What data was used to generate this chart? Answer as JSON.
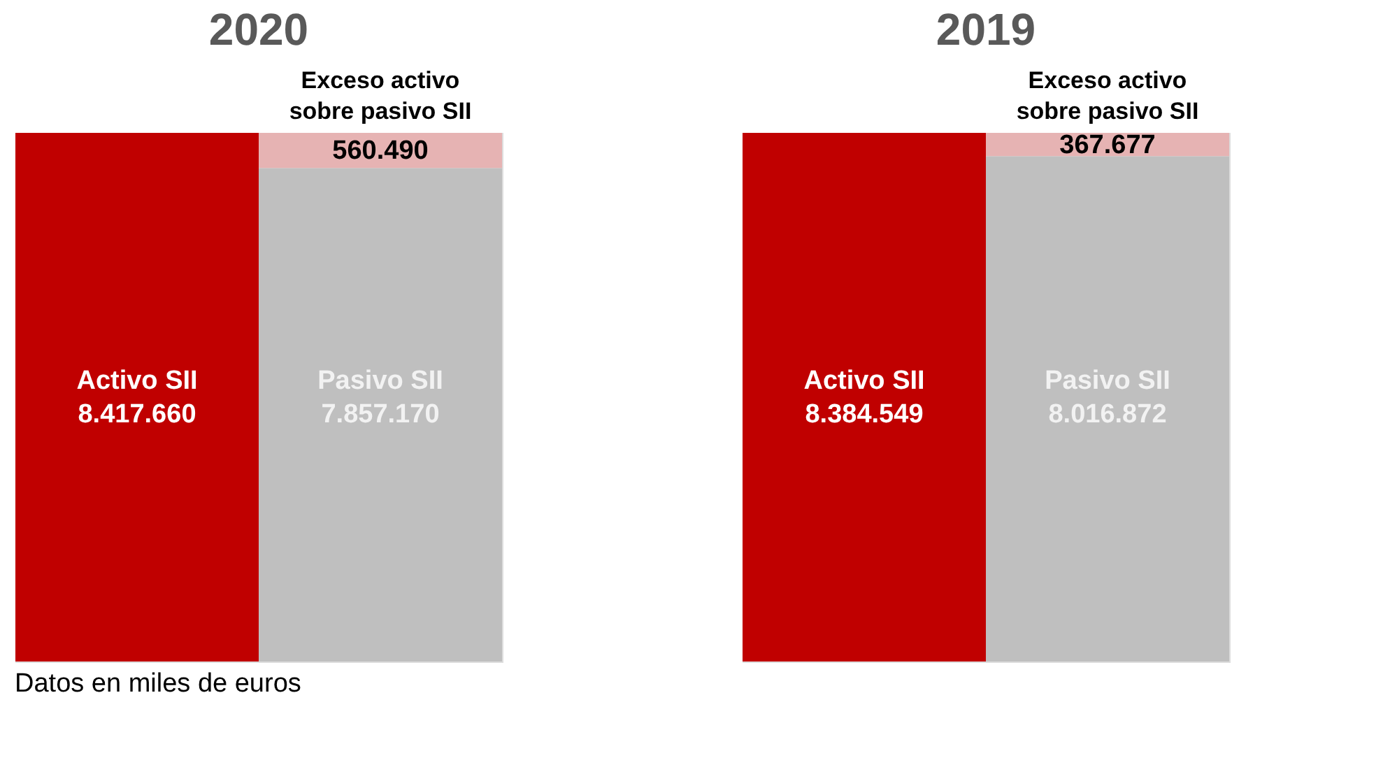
{
  "chart_data": [
    {
      "type": "bar",
      "stacked": true,
      "title": "2020",
      "categories": [
        "Activo SII",
        "Pasivo SII"
      ],
      "annotations": [
        "Datos en miles de euros"
      ],
      "series": [
        {
          "colors": [
            "#c00000",
            "#bfbfbf"
          ],
          "values": [
            8417660,
            7857170
          ],
          "value_labels": [
            "8.417.660",
            "7.857.170"
          ]
        },
        {
          "name": "Exceso activo sobre pasivo SII",
          "color": "#e6b3b3",
          "values": [
            null,
            560490
          ],
          "value_labels": [
            null,
            "560.490"
          ]
        }
      ]
    },
    {
      "type": "bar",
      "stacked": true,
      "title": "2019",
      "categories": [
        "Activo SII",
        "Pasivo SII"
      ],
      "series": [
        {
          "colors": [
            "#c00000",
            "#bfbfbf"
          ],
          "values": [
            8384549,
            8016872
          ],
          "value_labels": [
            "8.384.549",
            "8.016.872"
          ]
        },
        {
          "name": "Exceso activo sobre pasivo SII",
          "color": "#e6b3b3",
          "values": [
            null,
            367677
          ],
          "value_labels": [
            null,
            "367.677"
          ]
        }
      ]
    }
  ]
}
